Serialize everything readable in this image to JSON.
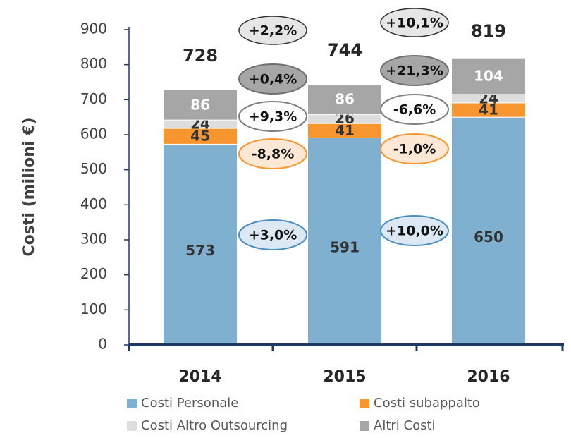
{
  "chart_data": {
    "type": "stacked_bar",
    "y_label": "Costi (milioni €)",
    "categories": [
      "2014",
      "2015",
      "2016"
    ],
    "ylim": [
      0,
      900
    ],
    "yticks": [
      0,
      100,
      200,
      300,
      400,
      500,
      600,
      700,
      800,
      900
    ],
    "series": [
      {
        "name": "Costi Personale",
        "color": "#7fb0cf",
        "values": [
          573,
          591,
          650
        ],
        "changes": [
          "+3,0%",
          "+10,0%"
        ]
      },
      {
        "name": "Costi subappalto",
        "color": "#f7962f",
        "values": [
          45,
          41,
          41
        ],
        "changes": [
          "-8,8%",
          "-1,0%"
        ]
      },
      {
        "name": "Costi Altro Outsourcing",
        "color": "#dddddd",
        "values": [
          24,
          26,
          24
        ],
        "changes": [
          "+9,3%",
          "-6,6%"
        ]
      },
      {
        "name": "Altri Costi",
        "color": "#a6a6a6",
        "values": [
          86,
          86,
          104
        ],
        "changes": [
          "+0,4%",
          "+21,3%"
        ]
      }
    ],
    "totals": [
      728,
      744,
      819
    ],
    "total_changes": [
      "+2,2%",
      "+10,1%"
    ]
  }
}
